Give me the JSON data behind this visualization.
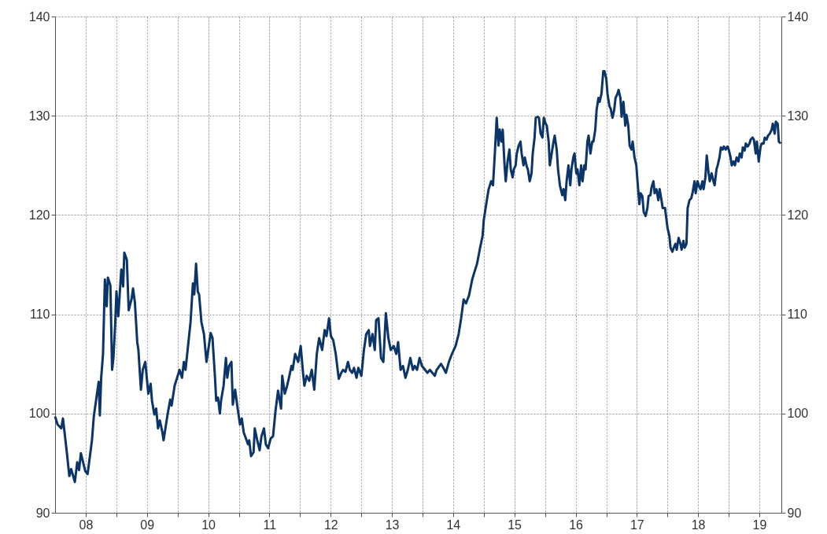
{
  "chart_data": {
    "type": "line",
    "x": [
      "2008-01-01",
      "2008-01-16",
      "2008-02-07",
      "2008-02-17",
      "2008-03-11",
      "2008-03-26",
      "2008-04-06",
      "2008-04-28",
      "2008-05-12",
      "2008-05-23",
      "2008-06-03",
      "2008-06-29",
      "2008-07-13",
      "2008-08-08",
      "2008-08-19",
      "2008-09-17",
      "2008-09-24",
      "2008-10-02",
      "2008-10-13",
      "2008-10-24",
      "2008-11-04",
      "2008-11-11",
      "2008-11-26",
      "2008-12-06",
      "2008-12-14",
      "2008-12-25",
      "2009-01-01",
      "2009-01-12",
      "2009-01-30",
      "2009-02-10",
      "2009-02-17",
      "2009-03-04",
      "2009-03-15",
      "2009-04-02",
      "2009-04-10",
      "2009-04-21",
      "2009-05-05",
      "2009-05-12",
      "2009-05-27",
      "2009-06-07",
      "2009-06-22",
      "2009-07-10",
      "2009-07-24",
      "2009-08-01",
      "2009-08-15",
      "2009-08-26",
      "2009-09-06",
      "2009-09-17",
      "2009-10-02",
      "2009-10-09",
      "2009-10-20",
      "2009-11-04",
      "2009-11-18",
      "2009-11-26",
      "2009-12-14",
      "2010-01-05",
      "2010-01-12",
      "2010-01-27",
      "2010-02-07",
      "2010-02-17",
      "2010-03-04",
      "2010-03-19",
      "2010-04-02",
      "2010-04-10",
      "2010-04-21",
      "2010-05-01",
      "2010-05-09",
      "2010-05-23",
      "2010-06-07",
      "2010-06-22",
      "2010-07-06",
      "2010-07-17",
      "2010-07-28",
      "2010-08-12",
      "2010-08-19",
      "2010-08-30",
      "2010-09-10",
      "2010-09-17",
      "2010-10-02",
      "2010-10-16",
      "2010-10-24",
      "2010-11-04",
      "2010-11-18",
      "2010-11-26",
      "2010-12-10",
      "2010-12-25",
      "2011-01-08",
      "2011-01-19",
      "2011-01-30",
      "2011-02-25",
      "2011-03-04",
      "2011-03-15",
      "2011-03-30",
      "2011-04-06",
      "2011-04-21",
      "2011-05-05",
      "2011-05-16",
      "2011-05-31",
      "2011-06-11",
      "2011-06-25",
      "2011-07-10",
      "2011-07-24",
      "2011-08-08",
      "2011-08-23",
      "2011-09-10",
      "2011-09-17",
      "2011-10-02",
      "2011-10-16",
      "2011-10-27",
      "2011-11-11",
      "2011-11-18",
      "2011-12-03",
      "2011-12-21",
      "2012-01-05",
      "2012-01-19",
      "2012-01-27",
      "2012-02-10",
      "2012-02-25",
      "2012-03-11",
      "2012-03-26",
      "2012-04-10",
      "2012-04-24",
      "2012-05-12",
      "2012-05-27",
      "2012-06-07",
      "2012-06-22",
      "2012-07-03",
      "2012-07-17",
      "2012-08-01",
      "2012-08-19",
      "2012-09-03",
      "2012-09-14",
      "2012-09-28",
      "2012-10-13",
      "2012-10-24",
      "2012-11-07",
      "2012-11-18",
      "2012-12-03",
      "2012-12-14",
      "2013-01-01",
      "2013-01-16",
      "2013-01-30",
      "2013-02-14",
      "2013-02-21",
      "2013-03-08",
      "2013-03-22",
      "2013-03-30",
      "2013-04-13",
      "2013-04-28",
      "2013-05-12",
      "2013-05-27",
      "2013-06-11",
      "2013-06-25",
      "2013-07-13",
      "2013-07-28",
      "2013-08-08",
      "2013-08-23",
      "2013-09-06",
      "2013-09-21",
      "2013-10-05",
      "2013-10-20",
      "2013-11-04",
      "2013-11-15",
      "2013-11-29",
      "2013-12-14",
      "2013-12-28",
      "2014-01-16",
      "2014-01-30",
      "2014-02-14",
      "2014-02-28",
      "2014-03-15",
      "2014-03-26",
      "2014-04-21",
      "2014-05-05",
      "2014-05-20",
      "2014-06-07",
      "2014-06-25",
      "2014-07-17",
      "2014-08-04",
      "2014-08-19",
      "2014-09-03",
      "2014-09-17",
      "2014-10-05",
      "2014-10-24",
      "2014-11-07",
      "2014-11-22",
      "2014-12-10",
      "2014-12-25",
      "2015-01-01",
      "2015-01-12",
      "2015-01-23",
      "2015-01-30",
      "2015-02-14",
      "2015-02-25",
      "2015-03-08",
      "2015-03-19",
      "2015-03-30",
      "2015-04-06",
      "2015-04-17",
      "2015-04-24",
      "2015-05-05",
      "2015-05-12",
      "2015-05-23",
      "2015-06-03",
      "2015-06-11",
      "2015-06-22",
      "2015-06-29",
      "2015-07-10",
      "2015-07-17",
      "2015-07-28",
      "2015-08-08",
      "2015-08-15",
      "2015-08-26",
      "2015-09-03",
      "2015-09-14",
      "2015-09-21",
      "2015-10-02",
      "2015-10-13",
      "2015-10-20",
      "2015-10-31",
      "2015-11-07",
      "2015-11-18",
      "2015-11-26",
      "2015-12-06",
      "2015-12-17",
      "2015-12-25",
      "2016-01-05",
      "2016-01-12",
      "2016-01-23",
      "2016-01-30",
      "2016-02-10",
      "2016-02-21",
      "2016-02-28",
      "2016-03-11",
      "2016-03-19",
      "2016-03-30",
      "2016-04-13",
      "2016-04-21",
      "2016-05-01",
      "2016-05-09",
      "2016-05-20",
      "2016-05-31",
      "2016-06-07",
      "2016-06-18",
      "2016-06-25",
      "2016-07-06",
      "2016-07-13",
      "2016-07-24",
      "2016-08-04",
      "2016-08-12",
      "2016-08-23",
      "2016-08-30",
      "2016-09-10",
      "2016-09-17",
      "2016-09-28",
      "2016-10-09",
      "2016-10-16",
      "2016-10-27",
      "2016-11-04",
      "2016-11-15",
      "2016-11-22",
      "2016-12-03",
      "2016-12-14",
      "2016-12-21",
      "2017-01-01",
      "2017-01-08",
      "2017-01-19",
      "2017-01-27",
      "2017-02-07",
      "2017-02-17",
      "2017-02-25",
      "2017-03-08",
      "2017-03-15",
      "2017-03-26",
      "2017-04-02",
      "2017-04-13",
      "2017-04-24",
      "2017-05-01",
      "2017-05-12",
      "2017-05-20",
      "2017-05-31",
      "2017-06-07",
      "2017-06-18",
      "2017-06-29",
      "2017-07-06",
      "2017-07-17",
      "2017-07-24",
      "2017-08-04",
      "2017-08-12",
      "2017-08-23",
      "2017-09-03",
      "2017-09-10",
      "2017-09-21",
      "2017-09-28",
      "2017-10-09",
      "2017-10-16",
      "2017-10-27",
      "2017-11-07",
      "2017-11-15",
      "2017-11-26",
      "2017-12-03",
      "2017-12-17",
      "2018-01-01",
      "2018-01-12",
      "2018-01-19",
      "2018-01-30",
      "2018-02-07",
      "2018-02-17",
      "2018-02-25",
      "2018-03-08",
      "2018-03-19",
      "2018-03-26",
      "2018-04-06",
      "2018-04-13",
      "2018-04-24",
      "2018-05-01",
      "2018-05-12",
      "2018-05-23",
      "2018-05-31",
      "2018-06-11",
      "2018-06-18",
      "2018-06-29",
      "2018-07-06",
      "2018-07-17",
      "2018-07-28",
      "2018-08-04",
      "2018-08-15",
      "2018-08-23",
      "2018-09-03",
      "2018-09-10",
      "2018-09-21",
      "2018-10-02",
      "2018-10-09",
      "2018-10-20",
      "2018-10-27",
      "2018-11-07",
      "2018-11-15",
      "2018-11-26",
      "2018-12-03",
      "2018-12-14",
      "2018-12-25",
      "2019-01-01",
      "2019-01-12",
      "2019-01-19",
      "2019-01-30",
      "2019-02-07",
      "2019-02-17",
      "2019-02-28",
      "2019-03-08",
      "2019-03-19",
      "2019-03-26",
      "2019-04-06",
      "2019-04-13",
      "2019-04-24",
      "2019-05-05",
      "2019-05-12",
      "2019-05-23",
      "2019-05-31",
      "2019-06-11",
      "2019-06-18",
      "2019-06-29",
      "2019-07-10",
      "2019-07-17",
      "2019-07-28",
      "2019-08-04",
      "2019-08-15",
      "2019-08-23",
      "2019-09-03",
      "2019-09-14",
      "2019-09-21",
      "2019-10-02",
      "2019-10-09",
      "2019-10-20",
      "2019-10-27",
      "2019-11-07"
    ],
    "series": [
      {
        "color": "#0b3468",
        "values": [
          99.7,
          98.9,
          98.5,
          99.5,
          96.1,
          93.7,
          94.4,
          93.1,
          95.1,
          94.3,
          96.0,
          94.2,
          93.9,
          97.3,
          99.7,
          103.2,
          99.8,
          103.6,
          106.0,
          113.5,
          110.8,
          113.7,
          112.9,
          104.4,
          105.6,
          109.2,
          112.3,
          109.8,
          114.5,
          112.8,
          116.2,
          115.5,
          110.4,
          111.6,
          112.6,
          111.2,
          107.2,
          106.4,
          102.4,
          104.4,
          105.2,
          102.0,
          103.0,
          101.3,
          99.9,
          100.5,
          98.5,
          99.3,
          98.1,
          97.3,
          98.5,
          100.1,
          101.4,
          100.8,
          102.8,
          104.0,
          104.4,
          103.6,
          105.2,
          104.4,
          106.8,
          109.2,
          113.1,
          112.0,
          115.1,
          112.3,
          112.0,
          109.2,
          108.0,
          105.2,
          106.8,
          108.1,
          107.6,
          103.6,
          101.3,
          101.6,
          100.0,
          101.3,
          102.8,
          105.6,
          103.6,
          104.8,
          105.2,
          100.9,
          102.4,
          100.5,
          98.9,
          99.5,
          98.1,
          96.9,
          97.3,
          95.7,
          96.1,
          98.5,
          97.3,
          96.3,
          97.7,
          98.5,
          96.9,
          96.5,
          97.5,
          97.7,
          100.3,
          102.3,
          100.5,
          103.8,
          102.0,
          102.8,
          103.6,
          104.8,
          104.4,
          106.0,
          105.2,
          106.8,
          104.1,
          102.8,
          103.8,
          103.3,
          104.4,
          102.4,
          106.0,
          107.6,
          106.4,
          108.4,
          107.8,
          109.6,
          107.8,
          107.4,
          106.0,
          103.5,
          104.1,
          104.4,
          104.2,
          105.2,
          104.4,
          104.1,
          104.6,
          103.6,
          104.6,
          103.8,
          106.4,
          108.0,
          108.4,
          106.8,
          108.0,
          106.4,
          109.4,
          109.6,
          105.6,
          105.2,
          110.1,
          107.6,
          106.4,
          106.8,
          106.0,
          107.2,
          104.4,
          104.8,
          103.6,
          104.4,
          105.6,
          104.4,
          104.8,
          104.4,
          105.6,
          104.8,
          104.4,
          104.1,
          104.4,
          104.1,
          103.8,
          104.4,
          105.0,
          104.6,
          104.1,
          105.2,
          106.0,
          106.8,
          108.0,
          109.6,
          111.5,
          111.1,
          111.9,
          113.5,
          114.3,
          115.1,
          116.7,
          117.9,
          119.5,
          120.7,
          121.9,
          122.6,
          123.4,
          123.0,
          126.2,
          129.8,
          127.0,
          128.6,
          127.4,
          128.6,
          125.0,
          123.4,
          125.4,
          126.6,
          124.6,
          123.8,
          124.6,
          125.0,
          126.2,
          127.0,
          127.4,
          126.2,
          125.0,
          125.8,
          124.9,
          124.6,
          123.4,
          124.2,
          126.2,
          127.8,
          129.8,
          129.9,
          129.8,
          128.2,
          127.8,
          129.8,
          129.2,
          129.0,
          127.4,
          125.0,
          126.2,
          127.4,
          128.0,
          126.6,
          124.6,
          123.0,
          122.0,
          122.6,
          121.5,
          123.4,
          125.0,
          123.0,
          124.6,
          125.8,
          126.2,
          124.2,
          124.6,
          123.0,
          125.0,
          123.4,
          125.0,
          124.6,
          127.4,
          128.0,
          126.2,
          127.4,
          127.4,
          128.6,
          130.6,
          131.8,
          131.4,
          132.2,
          134.5,
          134.5,
          133.7,
          132.2,
          131.0,
          130.7,
          129.8,
          130.6,
          131.8,
          132.2,
          132.6,
          131.8,
          129.9,
          131.4,
          129.0,
          130.1,
          129.0,
          127.0,
          126.6,
          127.4,
          125.8,
          125.0,
          123.4,
          121.1,
          122.2,
          121.9,
          120.3,
          119.9,
          120.7,
          121.9,
          122.0,
          122.8,
          123.4,
          122.2,
          122.6,
          121.5,
          122.6,
          121.5,
          120.7,
          120.7,
          118.7,
          117.9,
          116.7,
          116.3,
          116.7,
          117.1,
          116.5,
          117.7,
          117.1,
          116.5,
          117.4,
          116.7,
          117.1,
          120.7,
          121.5,
          121.7,
          122.3,
          123.4,
          122.2,
          123.4,
          123.0,
          122.6,
          123.4,
          122.6,
          123.8,
          126.0,
          124.2,
          123.4,
          124.2,
          123.4,
          123.0,
          124.6,
          125.0,
          125.8,
          126.8,
          126.6,
          126.9,
          126.6,
          126.9,
          126.6,
          125.8,
          125.0,
          125.4,
          125.0,
          125.8,
          125.4,
          126.2,
          125.8,
          126.8,
          126.5,
          127.2,
          126.9,
          127.2,
          127.6,
          127.8,
          127.6,
          126.2,
          127.4,
          125.4,
          126.9,
          127.2,
          127.2,
          127.8,
          127.6,
          128.0,
          128.2,
          128.6,
          129.2,
          128.2,
          129.4,
          129.2,
          127.4,
          127.2
        ]
      }
    ],
    "xlim": [
      "2008-01-01",
      "2019-11-11"
    ],
    "xticks": [
      {
        "value": "2008-07-02",
        "label": "08"
      },
      {
        "value": "2009-01-01",
        "label": null
      },
      {
        "value": "2009-07-02",
        "label": "09"
      },
      {
        "value": "2010-01-01",
        "label": null
      },
      {
        "value": "2010-07-02",
        "label": "10"
      },
      {
        "value": "2011-01-01",
        "label": null
      },
      {
        "value": "2011-07-02",
        "label": "11"
      },
      {
        "value": "2012-01-01",
        "label": null
      },
      {
        "value": "2012-07-02",
        "label": "12"
      },
      {
        "value": "2013-01-01",
        "label": null
      },
      {
        "value": "2013-07-02",
        "label": "13"
      },
      {
        "value": "2014-01-01",
        "label": null
      },
      {
        "value": "2014-07-02",
        "label": "14"
      },
      {
        "value": "2015-01-01",
        "label": null
      },
      {
        "value": "2015-07-02",
        "label": "15"
      },
      {
        "value": "2016-01-01",
        "label": null
      },
      {
        "value": "2016-07-02",
        "label": "16"
      },
      {
        "value": "2017-01-01",
        "label": null
      },
      {
        "value": "2017-07-02",
        "label": "17"
      },
      {
        "value": "2018-01-01",
        "label": null
      },
      {
        "value": "2018-07-02",
        "label": "18"
      },
      {
        "value": "2019-01-01",
        "label": null
      },
      {
        "value": "2019-07-02",
        "label": "19"
      }
    ],
    "ylim": [
      90,
      140
    ],
    "yticks": [
      90,
      100,
      110,
      120,
      130,
      140
    ],
    "y2lim": [
      90,
      140
    ],
    "y2ticks": [
      90,
      100,
      110,
      120,
      130,
      140
    ],
    "grid": true,
    "line_style": "solid"
  }
}
